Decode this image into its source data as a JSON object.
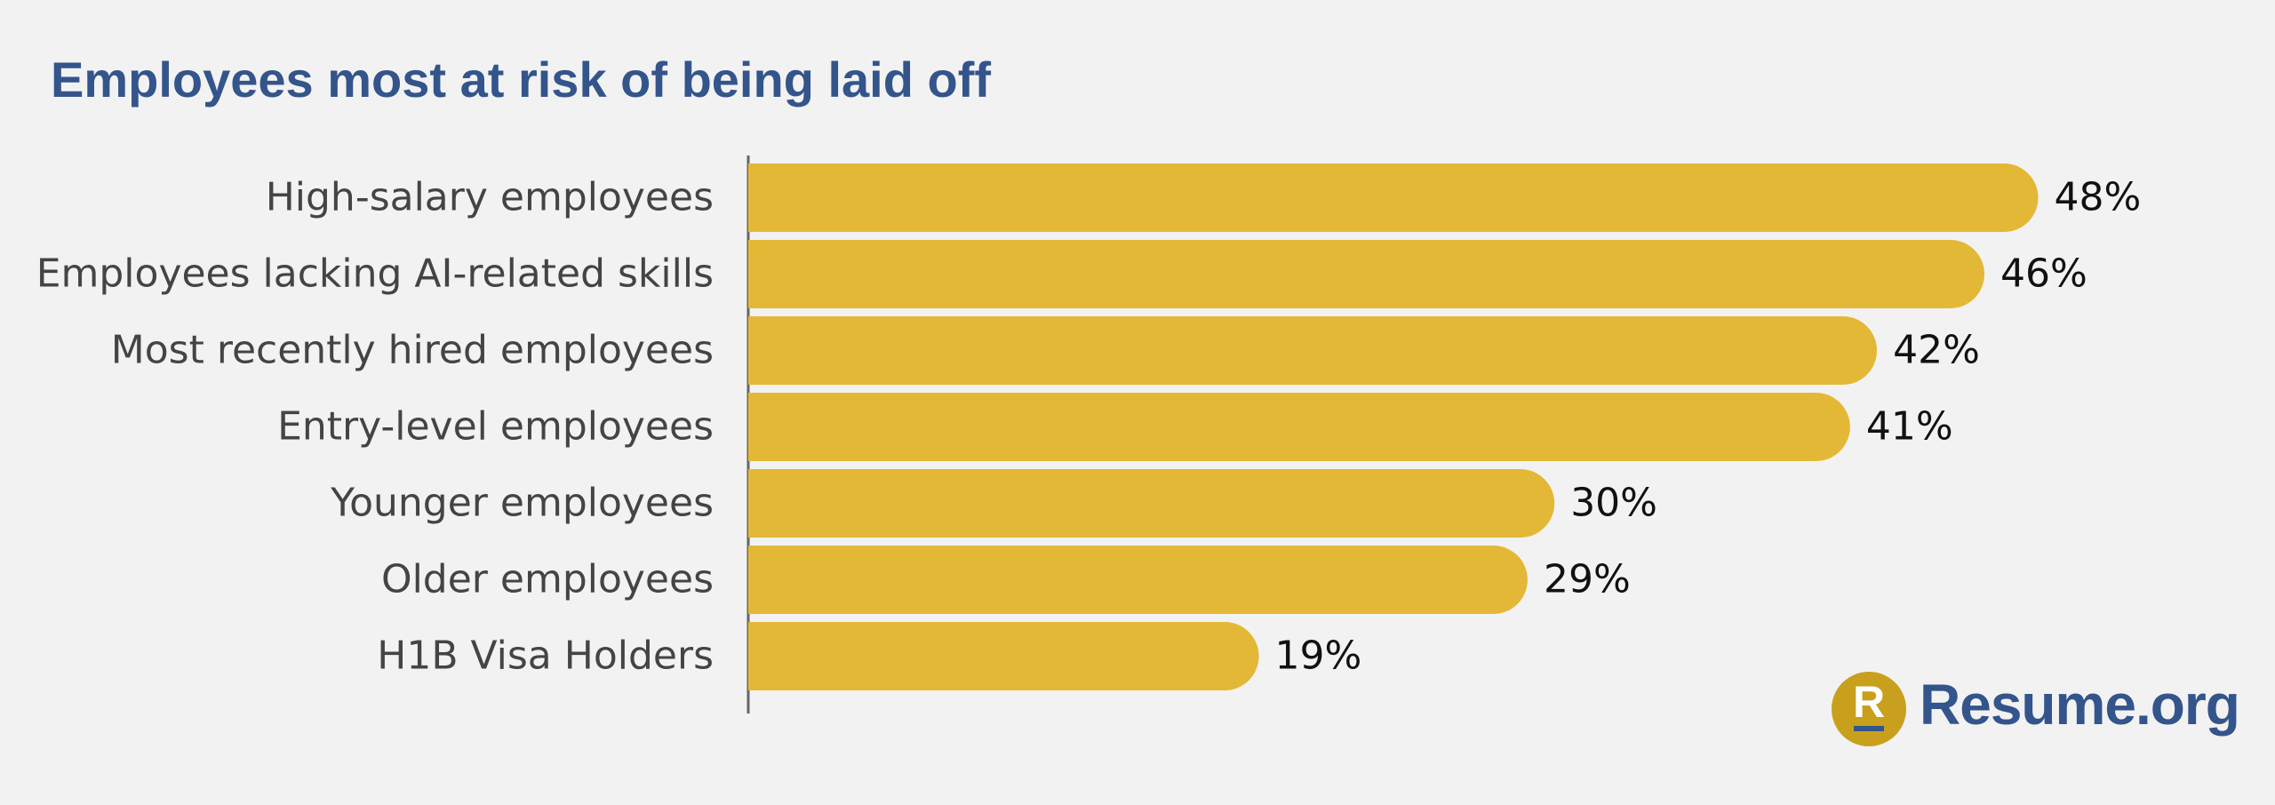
{
  "chart_data": {
    "type": "bar",
    "orientation": "horizontal",
    "title": "Employees most at risk of being laid off",
    "categories": [
      "High-salary employees",
      "Employees lacking AI-related skills",
      "Most recently hired employees",
      "Entry-level employees",
      "Younger employees",
      "Older employees",
      "H1B Visa Holders"
    ],
    "values": [
      48,
      46,
      42,
      41,
      30,
      29,
      19
    ],
    "value_labels": [
      "48%",
      "46%",
      "42%",
      "41%",
      "30%",
      "29%",
      "19%"
    ],
    "color": "#e3b836"
  },
  "logo": {
    "letter": "R",
    "text": "Resume.org"
  }
}
